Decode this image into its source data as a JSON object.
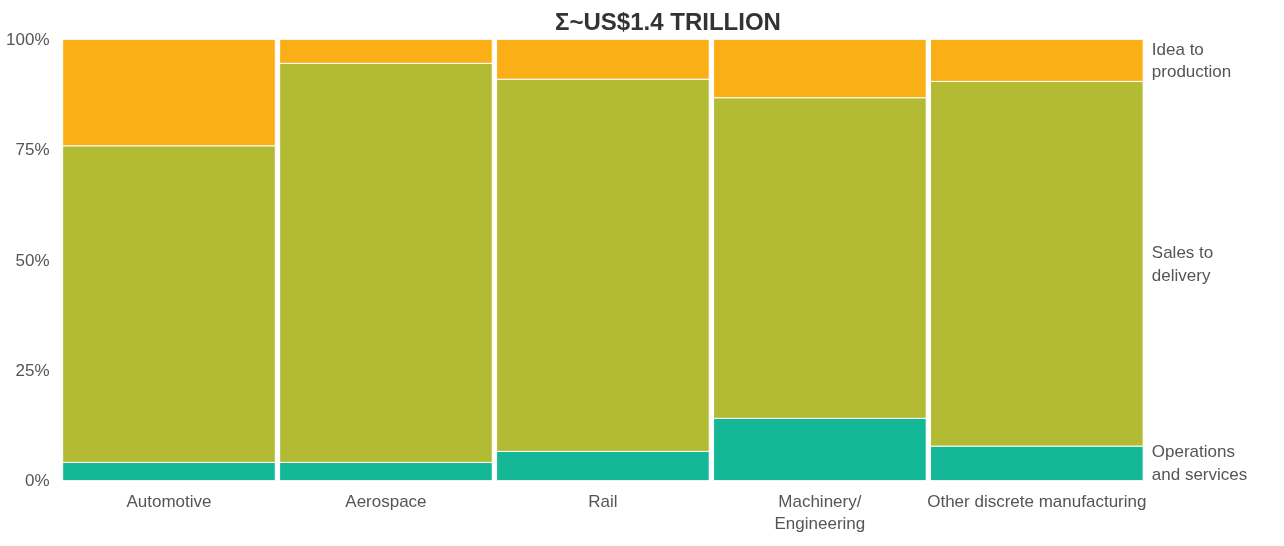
{
  "chart_data": {
    "type": "bar",
    "stacked": true,
    "title": "Σ~US$1.4 TRILLION",
    "categories": [
      "Automotive",
      "Aerospace",
      "Rail",
      "Machinery/\nEngineering",
      "Other discrete manufacturing"
    ],
    "series": [
      {
        "name": "Operations\nand services",
        "color": "#14b796",
        "values": [
          4.1,
          4.1,
          6.6,
          14.1,
          7.8
        ]
      },
      {
        "name": "Sales to\ndelivery",
        "color": "#b3bb35",
        "values": [
          71.8,
          90.5,
          84.4,
          72.7,
          82.7
        ]
      },
      {
        "name": "Idea to\nproduction",
        "color": "#fbaf17",
        "values": [
          24.1,
          5.4,
          9.0,
          13.2,
          9.5
        ]
      }
    ],
    "ylim": [
      0,
      100
    ],
    "yticks": [
      {
        "value": 0,
        "label": "0%"
      },
      {
        "value": 25,
        "label": "25%"
      },
      {
        "value": 50,
        "label": "50%"
      },
      {
        "value": 75,
        "label": "75%"
      },
      {
        "value": 100,
        "label": "100%"
      }
    ],
    "grid": false
  }
}
